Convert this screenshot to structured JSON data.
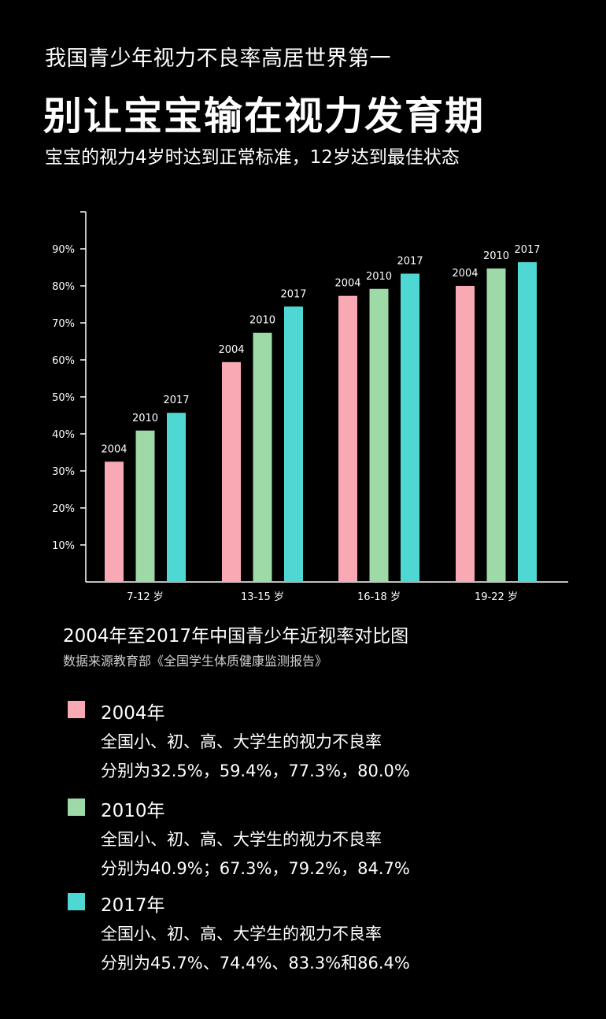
{
  "header": {
    "subtitle": "我国青少年视力不良率高居世界第一",
    "title": "别让宝宝输在视力发育期",
    "description": "宝宝的视力4岁时达到正常标准，12岁达到最佳状态"
  },
  "chart_data": {
    "type": "bar",
    "title": "2004年至2017年中国青少年近视率对比图",
    "source": "数据来源教育部《全国学生体质健康监测报告》",
    "categories": [
      "7-12 岁",
      "13-15 岁",
      "16-18 岁",
      "19-22 岁"
    ],
    "series": [
      {
        "name": "2004",
        "values": [
          32.5,
          59.4,
          77.3,
          80.0
        ],
        "color": "#f8a9b3"
      },
      {
        "name": "2010",
        "values": [
          40.9,
          67.3,
          79.2,
          84.7
        ],
        "color": "#9ed9a8"
      },
      {
        "name": "2017",
        "values": [
          45.7,
          74.4,
          83.3,
          86.4
        ],
        "color": "#4fd8d3"
      }
    ],
    "yticks": [
      "10%",
      "20%",
      "30%",
      "40%",
      "50%",
      "60%",
      "70%",
      "80%",
      "90%"
    ],
    "ylim": [
      0,
      100
    ],
    "bar_labels": "series name above each bar",
    "grid": false
  },
  "legend": [
    {
      "year": "2004年",
      "line1": "全国小、初、高、大学生的视力不良率",
      "line2": "分别为32.5%，59.4%，77.3%，80.0%",
      "color": "#f8a9b3"
    },
    {
      "year": "2010年",
      "line1": "全国小、初、高、大学生的视力不良率",
      "line2": "分别为40.9%；67.3%，79.2%，84.7%",
      "color": "#9ed9a8"
    },
    {
      "year": "2017年",
      "line1": "全国小、初、高、大学生的视力不良率",
      "line2": "分别为45.7%、74.4%、83.3%和86.4%",
      "color": "#4fd8d3"
    }
  ]
}
